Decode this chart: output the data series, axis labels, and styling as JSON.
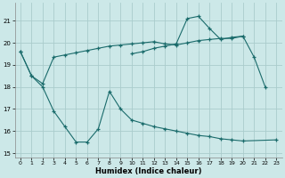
{
  "xlabel": "Humidex (Indice chaleur)",
  "bg_color": "#cce8e8",
  "grid_color": "#aacccc",
  "line_color": "#1a6b6b",
  "xlim": [
    -0.5,
    23.5
  ],
  "ylim": [
    14.8,
    21.8
  ],
  "yticks": [
    15,
    16,
    17,
    18,
    19,
    20,
    21
  ],
  "xticks": [
    0,
    1,
    2,
    3,
    4,
    5,
    6,
    7,
    8,
    9,
    10,
    11,
    12,
    13,
    14,
    15,
    16,
    17,
    18,
    19,
    20,
    21,
    22,
    23
  ],
  "c1_x": [
    0,
    1,
    2,
    3,
    4,
    5,
    6,
    7,
    8,
    9,
    10,
    11,
    12,
    13,
    14,
    15,
    16,
    17,
    18,
    19,
    20,
    23
  ],
  "c1_y": [
    19.6,
    18.5,
    18.0,
    16.9,
    16.2,
    15.5,
    15.5,
    16.1,
    17.8,
    17.0,
    16.5,
    16.35,
    16.2,
    16.1,
    16.0,
    15.9,
    15.8,
    15.75,
    15.65,
    15.6,
    15.55,
    15.6
  ],
  "c2_x": [
    0,
    1,
    2,
    3,
    4,
    5,
    6,
    7,
    8,
    9,
    10,
    11,
    12,
    13,
    14,
    15,
    16,
    17,
    18,
    19,
    20,
    21,
    22
  ],
  "c2_y": [
    19.6,
    18.5,
    18.15,
    19.35,
    19.45,
    19.55,
    19.65,
    19.75,
    19.85,
    19.9,
    19.95,
    20.0,
    20.05,
    19.95,
    19.9,
    20.0,
    20.1,
    20.15,
    20.2,
    20.2,
    20.3,
    19.35,
    18.0
  ],
  "c3_x": [
    10,
    11,
    12,
    13,
    14,
    15,
    16,
    17,
    18,
    19,
    20
  ],
  "c3_y": [
    19.5,
    19.6,
    19.75,
    19.85,
    19.95,
    21.1,
    21.2,
    20.65,
    20.15,
    20.25,
    20.3
  ]
}
